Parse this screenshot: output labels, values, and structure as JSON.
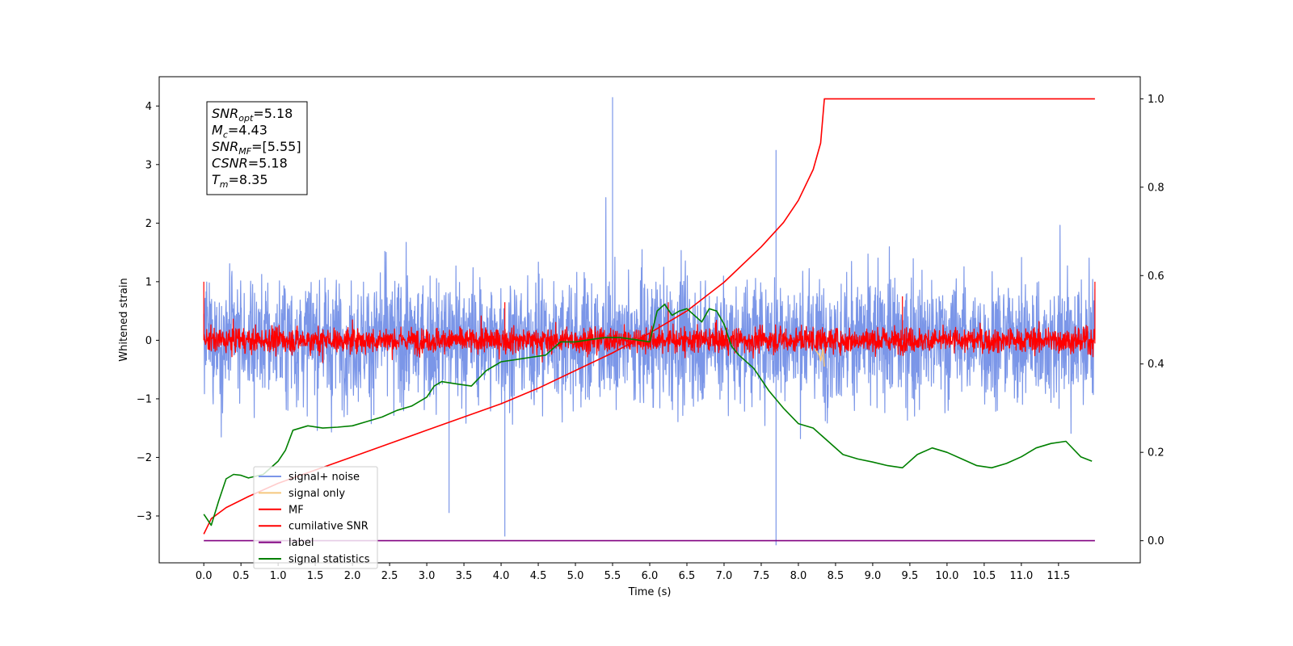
{
  "chart_data": {
    "type": "line",
    "xlabel": "Time (s)",
    "ylabel": "Whitened strain",
    "xlim": [
      -0.6,
      12.6
    ],
    "ylim": [
      -3.8,
      4.5
    ],
    "y2lim": [
      -0.05,
      1.05
    ],
    "x_ticks": [
      0.0,
      0.5,
      1.0,
      1.5,
      2.0,
      2.5,
      3.0,
      3.5,
      4.0,
      4.5,
      5.0,
      5.5,
      6.0,
      6.5,
      7.0,
      7.5,
      8.0,
      8.5,
      9.0,
      9.5,
      10.0,
      10.5,
      11.0,
      11.5
    ],
    "x_tick_labels": [
      "0.0",
      "0.5",
      "1.0",
      "1.5",
      "2.0",
      "2.5",
      "3.0",
      "3.5",
      "4.0",
      "4.5",
      "5.0",
      "5.5",
      "6.0",
      "6.5",
      "7.0",
      "7.5",
      "8.0",
      "8.5",
      "9.0",
      "9.5",
      "10.0",
      "10.5",
      "11.0",
      "11.5"
    ],
    "y_ticks": [
      -3,
      -2,
      -1,
      0,
      1,
      2,
      3,
      4
    ],
    "y_tick_labels": [
      "−3",
      "−2",
      "−1",
      "0",
      "1",
      "2",
      "3",
      "4"
    ],
    "y2_ticks": [
      0.0,
      0.2,
      0.4,
      0.6,
      0.8,
      1.0
    ],
    "y2_tick_labels": [
      "0.0",
      "0.2",
      "0.4",
      "0.6",
      "0.8",
      "1.0"
    ],
    "grid": false,
    "legend_position": "lower-left",
    "annotation": {
      "snr_opt": {
        "base": "SNR",
        "sub": "opt",
        "value": "=5.18"
      },
      "mc": {
        "base": "M",
        "sub": "c",
        "value": "=4.43"
      },
      "snr_mf": {
        "base": "SNR",
        "sub": "MF",
        "value": "=[5.55]"
      },
      "csnr": {
        "base": "CSNR",
        "sub": "",
        "value": "=5.18"
      },
      "tm": {
        "base": "T",
        "sub": "m",
        "value": "=8.35"
      }
    },
    "series": [
      {
        "name": "signal+ noise",
        "color": "#7b96e8",
        "axis": "left",
        "kind": "noise",
        "x_range": [
          0.0,
          11.99
        ],
        "std": 0.75,
        "spikes": [
          [
            5.5,
            4.15
          ],
          [
            7.7,
            -3.5
          ],
          [
            7.7,
            3.25
          ],
          [
            4.05,
            -3.35
          ],
          [
            3.3,
            -2.95
          ]
        ]
      },
      {
        "name": "signal only",
        "color": "#f5c77e",
        "axis": "left",
        "kind": "chirp",
        "x": [
          8.22,
          8.28,
          8.3,
          8.33,
          8.35
        ],
        "y": [
          -0.15,
          -0.25,
          -0.35,
          -0.15,
          -0.45
        ]
      },
      {
        "name": "MF",
        "color": "#ff0000",
        "axis": "left",
        "kind": "noise",
        "x_range": [
          0.0,
          11.99
        ],
        "std": 0.15,
        "spikes": [
          [
            0.0,
            1.0
          ],
          [
            11.99,
            1.0
          ],
          [
            9.4,
            0.75
          ],
          [
            4.05,
            0.65
          ],
          [
            6.25,
            0.65
          ]
        ]
      },
      {
        "name": "cumilative SNR",
        "color": "#ff0000",
        "axis": "right",
        "kind": "line",
        "x": [
          0.0,
          0.1,
          0.3,
          0.6,
          1.0,
          1.5,
          2.0,
          2.5,
          3.0,
          3.5,
          4.0,
          4.5,
          5.0,
          5.5,
          6.0,
          6.5,
          7.0,
          7.5,
          7.8,
          8.0,
          8.2,
          8.3,
          8.35,
          9.0,
          10.0,
          11.0,
          11.99
        ],
        "y": [
          0.015,
          0.05,
          0.075,
          0.1,
          0.13,
          0.16,
          0.19,
          0.22,
          0.25,
          0.28,
          0.31,
          0.345,
          0.385,
          0.425,
          0.47,
          0.52,
          0.585,
          0.665,
          0.72,
          0.77,
          0.84,
          0.9,
          1.0,
          1.0,
          1.0,
          1.0,
          1.0
        ]
      },
      {
        "name": "label",
        "color": "#800080",
        "axis": "right",
        "kind": "line",
        "x": [
          0.0,
          11.99
        ],
        "y": [
          0.0,
          0.0
        ]
      },
      {
        "name": "signal statistics",
        "color": "#008000",
        "axis": "right",
        "kind": "line",
        "x": [
          0.0,
          0.1,
          0.2,
          0.3,
          0.4,
          0.5,
          0.6,
          0.8,
          1.0,
          1.1,
          1.2,
          1.4,
          1.6,
          1.8,
          2.0,
          2.2,
          2.4,
          2.6,
          2.8,
          3.0,
          3.1,
          3.2,
          3.4,
          3.6,
          3.8,
          3.9,
          4.0,
          4.2,
          4.4,
          4.6,
          4.8,
          5.0,
          5.2,
          5.4,
          5.6,
          5.8,
          6.0,
          6.1,
          6.2,
          6.3,
          6.4,
          6.5,
          6.6,
          6.7,
          6.8,
          6.9,
          7.0,
          7.1,
          7.2,
          7.4,
          7.6,
          7.8,
          8.0,
          8.2,
          8.4,
          8.6,
          8.8,
          9.0,
          9.2,
          9.4,
          9.6,
          9.8,
          10.0,
          10.2,
          10.4,
          10.6,
          10.8,
          11.0,
          11.2,
          11.4,
          11.6,
          11.8,
          11.95
        ],
        "y": [
          0.06,
          0.035,
          0.09,
          0.14,
          0.15,
          0.148,
          0.142,
          0.15,
          0.18,
          0.205,
          0.25,
          0.26,
          0.255,
          0.257,
          0.26,
          0.27,
          0.28,
          0.295,
          0.305,
          0.325,
          0.35,
          0.36,
          0.355,
          0.35,
          0.385,
          0.395,
          0.405,
          0.41,
          0.415,
          0.42,
          0.45,
          0.45,
          0.455,
          0.46,
          0.46,
          0.455,
          0.45,
          0.52,
          0.535,
          0.51,
          0.52,
          0.525,
          0.51,
          0.495,
          0.525,
          0.52,
          0.49,
          0.44,
          0.42,
          0.39,
          0.34,
          0.3,
          0.265,
          0.255,
          0.225,
          0.195,
          0.185,
          0.178,
          0.17,
          0.165,
          0.195,
          0.21,
          0.2,
          0.185,
          0.17,
          0.165,
          0.175,
          0.19,
          0.21,
          0.22,
          0.225,
          0.19,
          0.18
        ]
      }
    ]
  }
}
